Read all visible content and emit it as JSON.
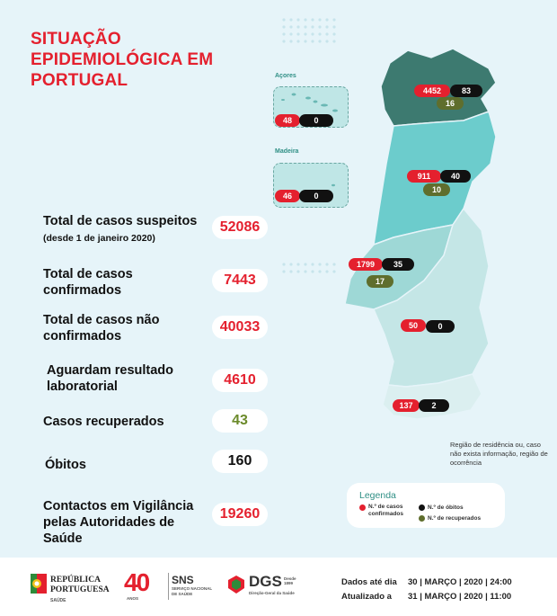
{
  "header": {
    "title": "SITUAÇÃO EPIDEMIOLÓGICA EM PORTUGAL"
  },
  "stats": [
    {
      "label": "Total de casos suspeitos",
      "note": "(desde 1 de janeiro 2020)",
      "value": "52086"
    },
    {
      "label": "Total de casos confirmados",
      "value": "7443"
    },
    {
      "label": "Total de casos não confirmados",
      "value": "40033"
    },
    {
      "label": "Aguardam resultado laboratorial",
      "value": "4610"
    },
    {
      "label": "Casos recuperados",
      "value": "43"
    },
    {
      "label": "Óbitos",
      "value": "160"
    },
    {
      "label": "Contactos em Vigilância pelas Autoridades de Saúde",
      "value": "19260"
    }
  ],
  "islands": {
    "azores": {
      "name": "Açores",
      "cases": "48",
      "deaths": "0"
    },
    "madeira": {
      "name": "Madeira",
      "cases": "46",
      "deaths": "0"
    }
  },
  "regions": {
    "norte": {
      "cases": "4452",
      "deaths": "83",
      "recovered": "16"
    },
    "centro": {
      "cases": "911",
      "deaths": "40",
      "recovered": "10"
    },
    "lvt": {
      "cases": "1799",
      "deaths": "35",
      "recovered": "17"
    },
    "alentejo": {
      "cases": "50",
      "deaths": "0"
    },
    "algarve": {
      "cases": "137",
      "deaths": "2"
    }
  },
  "region_note": "Região de residência ou, caso não exista informação, região de ocorrência",
  "legend": {
    "title": "Legenda",
    "cases": "N.º de casos confirmados",
    "deaths": "N.º de óbitos",
    "recovered": "N.º de recuperados"
  },
  "footer": {
    "republica_line1": "REPÚBLICA",
    "republica_line2": "PORTUGUESA",
    "republica_sub": "SAÚDE",
    "sns_40": "40",
    "sns_anos": "ANOS",
    "sns_title": "SNS",
    "sns_sub1": "SERVIÇO NACIONAL",
    "sns_sub2": "DE SAÚDE",
    "dgs_title": "DGS",
    "dgs_since": "Desde 1899",
    "dgs_sub": "Direção-Geral da Saúde",
    "data_label": "Dados até dia",
    "data_value": "30 | MARÇO | 2020 | 24:00",
    "update_label": "Atualizado a",
    "update_value": "31 | MARÇO | 2020 | 11:00"
  },
  "colors": {
    "red": "#e4202e",
    "norte": "#3d7a70",
    "centro": "#6ccccc",
    "lvt": "#9ed8d6",
    "alentejo": "#c4e6e6",
    "algarve": "#dbeff0",
    "olive": "#5f6e2d"
  }
}
